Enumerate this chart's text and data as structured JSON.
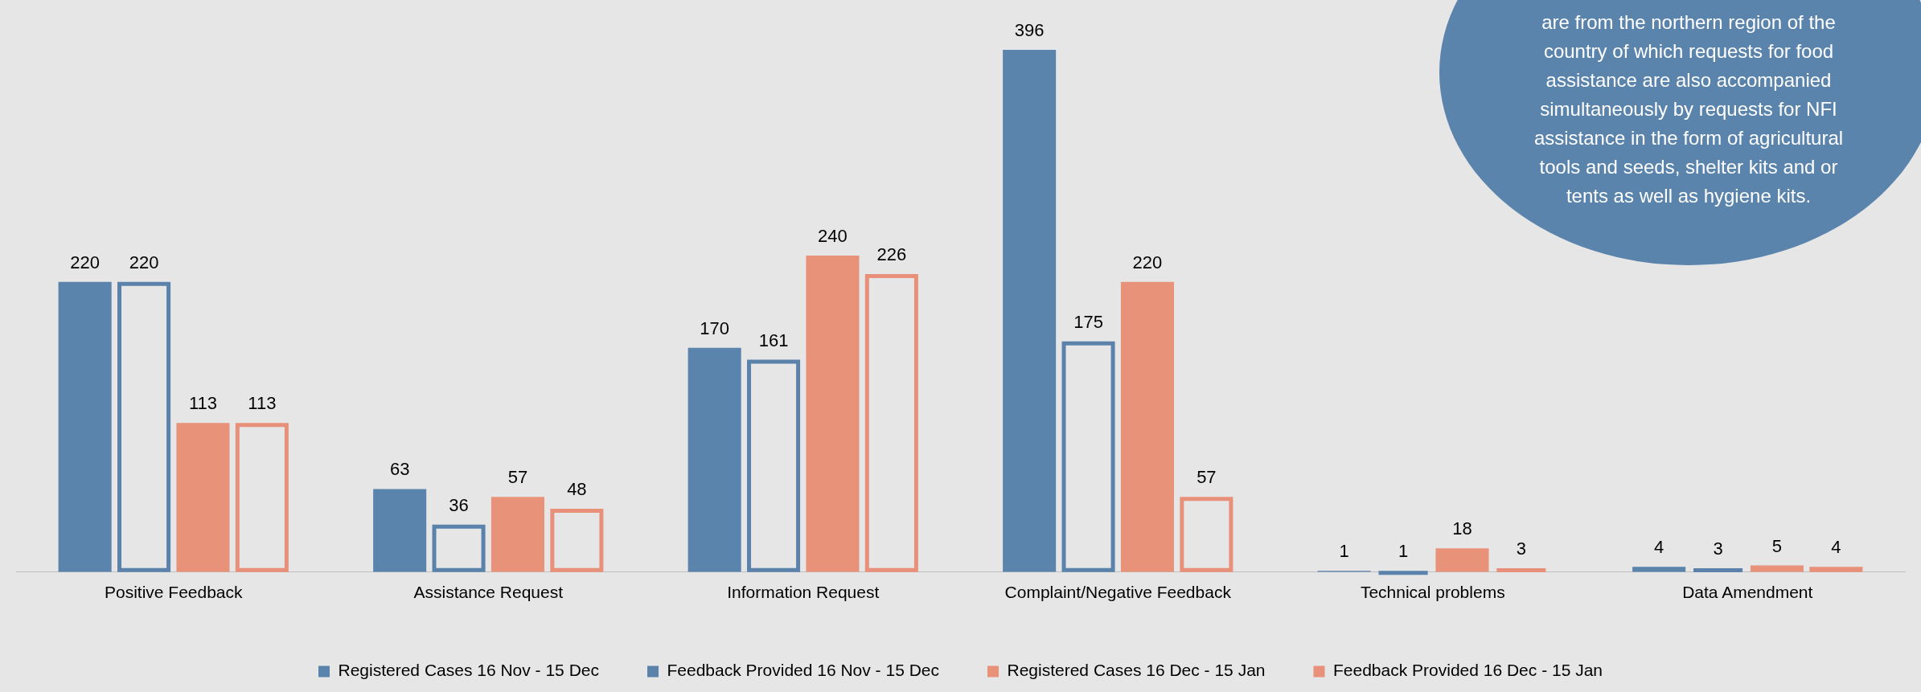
{
  "chart_data": {
    "type": "bar",
    "categories": [
      "Positive Feedback",
      "Assistance Request",
      "Information Request",
      "Complaint/Negative Feedback",
      "Technical problems",
      "Data Amendment"
    ],
    "series": [
      {
        "name": "Registered Cases 16 Nov - 15 Dec",
        "color": "#5b84ad",
        "values": [
          220,
          63,
          170,
          396,
          1,
          4
        ]
      },
      {
        "name": "Feedback Provided 16 Nov - 15 Dec",
        "color": "#5a82ab",
        "values": [
          220,
          36,
          161,
          175,
          1,
          3
        ]
      },
      {
        "name": "Registered Cases 16 Dec - 15 Jan",
        "color": "#e8927a",
        "values": [
          113,
          57,
          240,
          220,
          18,
          5
        ]
      },
      {
        "name": "Feedback Provided 16 Dec - 15 Jan",
        "color": "#e9907a",
        "values": [
          113,
          48,
          226,
          57,
          3,
          4
        ]
      }
    ],
    "data_labels": true,
    "legend": "bottom",
    "grid": false,
    "annotations": [
      "are from the northern region of the country of which requests for food assistance are also accompanied simultaneously by requests for NFI assistance in the form of agricultural tools and seeds, shelter kits and or tents as well as hygiene kits."
    ]
  }
}
